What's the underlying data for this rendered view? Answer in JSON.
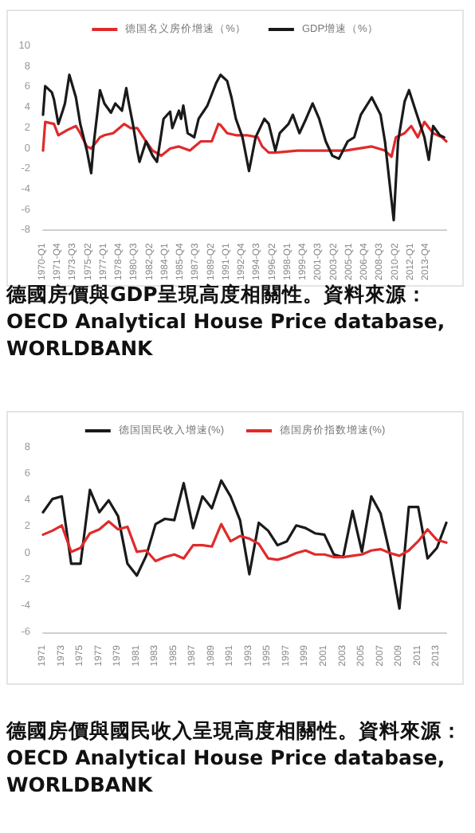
{
  "chart_data": [
    {
      "type": "line",
      "legend": "top",
      "marker": "none",
      "annotations": [
        "德國房價與GDP呈現高度相關性。資料來源：OECD Analytical House Price database, WORLDBANK"
      ],
      "xlim": [
        "1970-01",
        "2016-01"
      ],
      "ylim": [
        -8,
        10
      ],
      "yticks": [
        -8,
        -6,
        -4,
        -2,
        0,
        2,
        4,
        6,
        8,
        10
      ],
      "xticks": [
        {
          "value": "1970-01",
          "label": "1970-Q1"
        },
        {
          "value": "1971-10",
          "label": "1971-Q4"
        },
        {
          "value": "1973-07",
          "label": "1973-Q3"
        },
        {
          "value": "1975-04",
          "label": "1975-Q2"
        },
        {
          "value": "1977-01",
          "label": "1977-Q1"
        },
        {
          "value": "1978-10",
          "label": "1978-Q4"
        },
        {
          "value": "1980-07",
          "label": "1980-Q3"
        },
        {
          "value": "1982-04",
          "label": "1982-Q2"
        },
        {
          "value": "1984-01",
          "label": "1984-Q1"
        },
        {
          "value": "1985-10",
          "label": "1985-Q4"
        },
        {
          "value": "1987-07",
          "label": "1987-Q3"
        },
        {
          "value": "1989-04",
          "label": "1989-Q2"
        },
        {
          "value": "1991-01",
          "label": "1991-Q1"
        },
        {
          "value": "1992-10",
          "label": "1992-Q4"
        },
        {
          "value": "1994-07",
          "label": "1994-Q3"
        },
        {
          "value": "1996-04",
          "label": "1996-Q2"
        },
        {
          "value": "1998-01",
          "label": "1998-Q1"
        },
        {
          "value": "1999-10",
          "label": "1999-Q4"
        },
        {
          "value": "2001-07",
          "label": "2001-Q3"
        },
        {
          "value": "2003-04",
          "label": "2003-Q2"
        },
        {
          "value": "2005-01",
          "label": "2005-Q1"
        },
        {
          "value": "2006-10",
          "label": "2006-Q4"
        },
        {
          "value": "2008-07",
          "label": "2008-Q3"
        },
        {
          "value": "2010-04",
          "label": "2010-Q2"
        },
        {
          "value": "2012-01",
          "label": "2012-Q1"
        },
        {
          "value": "2013-10",
          "label": "2013-Q4"
        }
      ],
      "series": [
        {
          "name": "德国名义房价增速（%）",
          "color": "#e02a2a",
          "x": [
            "1970-01",
            "1970-04",
            "1971-04",
            "1971-10",
            "1972-10",
            "1973-10",
            "1974-04",
            "1975-01",
            "1975-07",
            "1976-07",
            "1977-01",
            "1978-01",
            "1979-04",
            "1980-01",
            "1980-10",
            "1981-10",
            "1982-07",
            "1983-07",
            "1984-07",
            "1985-07",
            "1986-10",
            "1988-01",
            "1989-04",
            "1990-01",
            "1990-04",
            "1991-01",
            "1992-01",
            "1993-04",
            "1994-07",
            "1995-01",
            "1995-10",
            "1996-07",
            "1999-01",
            "2001-07",
            "2004-07",
            "2007-07",
            "2009-01",
            "2009-10",
            "2010-04",
            "2011-04",
            "2012-01",
            "2012-10",
            "2013-07",
            "2014-07",
            "2015-07",
            "2016-01"
          ],
          "values": [
            -0.2,
            2.6,
            2.4,
            1.3,
            1.8,
            2.2,
            1.5,
            0.2,
            0.0,
            1.1,
            1.3,
            1.5,
            2.4,
            2.0,
            2.0,
            0.7,
            -0.2,
            -0.7,
            0.0,
            0.2,
            -0.2,
            0.7,
            0.7,
            2.4,
            2.3,
            1.5,
            1.3,
            1.3,
            1.1,
            0.2,
            -0.4,
            -0.4,
            -0.2,
            -0.2,
            -0.2,
            0.2,
            -0.2,
            -0.8,
            1.1,
            1.5,
            2.2,
            1.1,
            2.6,
            1.5,
            1.1,
            0.7
          ]
        },
        {
          "name": "GDP增速（%）",
          "color": "#1a1a1a",
          "x": [
            "1970-01",
            "1970-04",
            "1971-01",
            "1971-04",
            "1971-10",
            "1972-04",
            "1972-07",
            "1973-01",
            "1973-10",
            "1974-04",
            "1975-01",
            "1975-07",
            "1975-10",
            "1976-07",
            "1977-01",
            "1977-10",
            "1978-04",
            "1979-01",
            "1979-07",
            "1979-10",
            "1980-04",
            "1980-10",
            "1981-01",
            "1981-10",
            "1982-07",
            "1983-01",
            "1983-10",
            "1984-07",
            "1984-10",
            "1985-07",
            "1985-10",
            "1986-01",
            "1986-07",
            "1987-04",
            "1987-10",
            "1988-10",
            "1989-10",
            "1990-04",
            "1991-01",
            "1991-07",
            "1992-01",
            "1992-10",
            "1993-07",
            "1994-04",
            "1995-04",
            "1995-10",
            "1996-07",
            "1997-01",
            "1998-01",
            "1998-07",
            "1999-04",
            "2000-01",
            "2000-10",
            "2001-07",
            "2002-04",
            "2003-01",
            "2003-10",
            "2004-10",
            "2005-07",
            "2006-04",
            "2007-07",
            "2008-07",
            "2009-01",
            "2010-01",
            "2010-07",
            "2011-04",
            "2011-10",
            "2012-07",
            "2013-07",
            "2014-01",
            "2014-07",
            "2015-04",
            "2015-10"
          ],
          "values": [
            3.3,
            6.1,
            5.5,
            4.8,
            2.4,
            3.7,
            4.4,
            7.2,
            5.0,
            2.4,
            -0.2,
            -2.4,
            0.2,
            5.7,
            4.4,
            3.5,
            4.4,
            3.7,
            5.9,
            4.6,
            2.4,
            -0.2,
            -1.3,
            0.7,
            -0.7,
            -1.3,
            2.9,
            3.6,
            2.0,
            3.7,
            2.9,
            4.2,
            1.5,
            1.1,
            2.9,
            4.2,
            6.4,
            7.2,
            6.6,
            5.0,
            2.9,
            1.1,
            -2.2,
            1.1,
            2.9,
            2.4,
            -0.2,
            1.5,
            2.4,
            3.3,
            1.5,
            2.9,
            4.4,
            2.9,
            0.7,
            -0.7,
            -1.0,
            0.7,
            1.1,
            3.3,
            5.0,
            3.3,
            0.7,
            -7.0,
            0.7,
            4.6,
            5.7,
            3.7,
            1.1,
            -1.1,
            2.2,
            1.3,
            1.1
          ]
        }
      ]
    },
    {
      "type": "line",
      "legend": "top",
      "marker": "none",
      "annotations": [
        "德國房價與國民收入呈現高度相關性。資料來源：OECD Analytical House Price database, WORLDBANK"
      ],
      "ylim": [
        -6,
        8
      ],
      "yticks": [
        -6,
        -4,
        -2,
        0,
        2,
        4,
        6,
        8
      ],
      "categories": [
        "1971",
        null,
        "1973",
        null,
        "1975",
        null,
        "1977",
        null,
        "1979",
        null,
        "1981",
        null,
        "1983",
        null,
        "1985",
        null,
        "1987",
        null,
        "1989",
        null,
        "1991",
        null,
        "1993",
        null,
        "1995",
        null,
        "1997",
        null,
        "1999",
        null,
        "2001",
        null,
        "2003",
        null,
        "2005",
        null,
        "2007",
        null,
        "2009",
        null,
        "2011",
        null,
        "2013",
        null
      ],
      "series": [
        {
          "name": "德国国民收入增速(%)",
          "color": "#1a1a1a",
          "values": [
            3.1,
            4.1,
            4.3,
            -0.8,
            -0.8,
            4.8,
            3.1,
            4.0,
            2.8,
            -0.8,
            -1.7,
            -0.2,
            2.2,
            2.6,
            2.5,
            5.3,
            1.9,
            4.3,
            3.4,
            5.5,
            4.3,
            2.5,
            -1.6,
            2.3,
            1.7,
            0.6,
            0.9,
            2.1,
            1.9,
            1.5,
            1.4,
            -0.1,
            -0.3,
            3.2,
            0.1,
            4.3,
            3.0,
            -0.1,
            -4.2,
            3.5,
            3.5,
            -0.4,
            0.4,
            2.3
          ]
        },
        {
          "name": "德国房价指数增速(%)",
          "color": "#e02a2a",
          "values": [
            1.4,
            1.7,
            2.1,
            0.1,
            0.4,
            1.5,
            1.8,
            2.4,
            1.8,
            2.0,
            0.1,
            0.2,
            -0.6,
            -0.3,
            -0.1,
            -0.4,
            0.6,
            0.6,
            0.5,
            2.2,
            0.9,
            1.3,
            1.1,
            0.7,
            -0.4,
            -0.5,
            -0.3,
            0.0,
            0.2,
            -0.1,
            -0.1,
            -0.3,
            -0.3,
            -0.2,
            -0.1,
            0.2,
            0.3,
            0.0,
            -0.2,
            0.2,
            0.9,
            1.8,
            1.0,
            0.8
          ]
        }
      ]
    }
  ]
}
